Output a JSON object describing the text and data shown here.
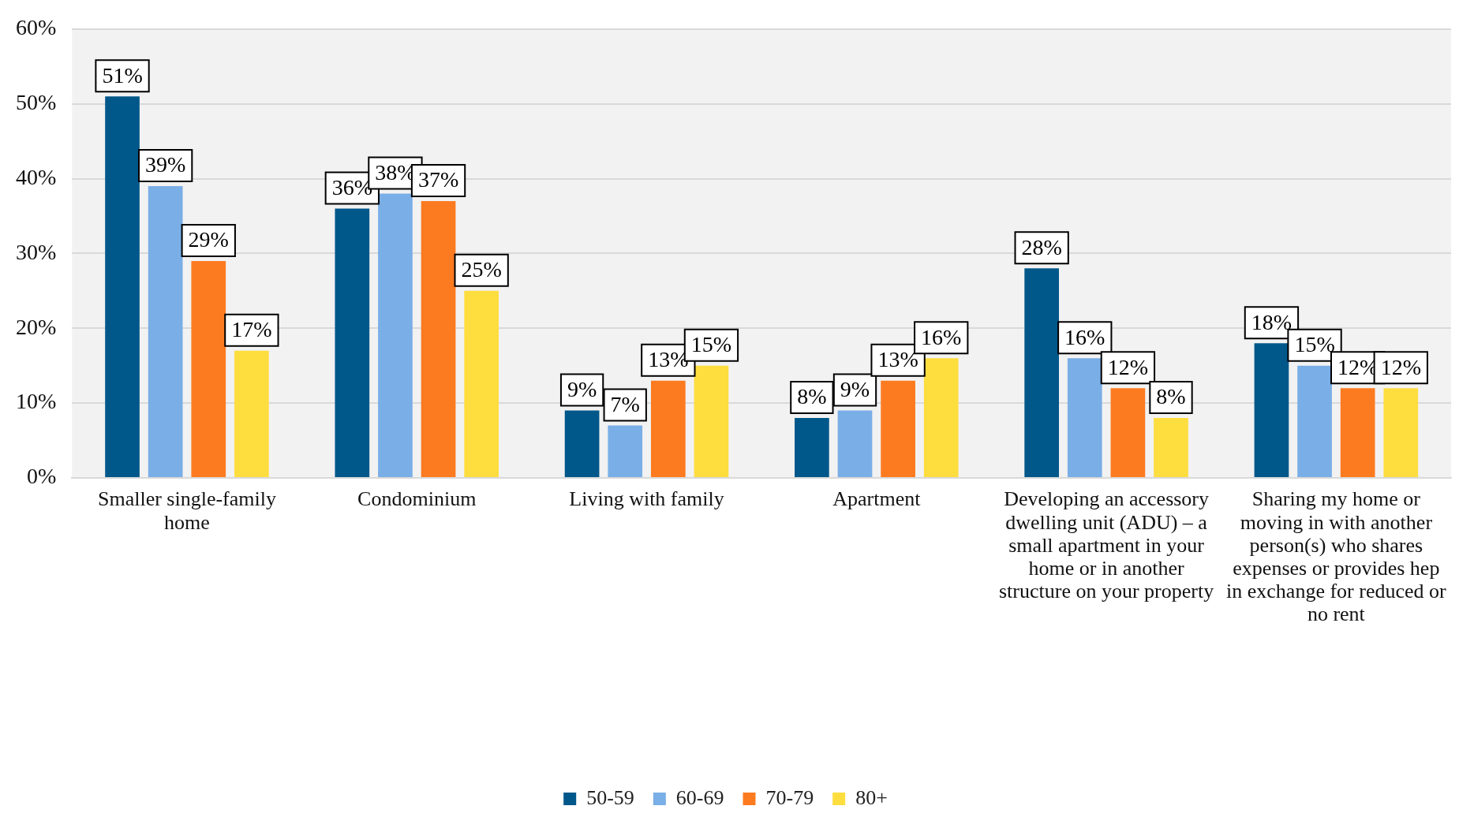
{
  "chart_data": {
    "type": "bar",
    "categories": [
      "Smaller single-family home",
      "Condominium",
      "Living with family",
      "Apartment",
      "Developing an accessory dwelling unit (ADU) – a small apartment in your home or in another structure on your property",
      "Sharing my home or moving in with another person(s) who shares expenses or provides hep in exchange for reduced or no rent"
    ],
    "series": [
      {
        "name": "50-59",
        "color": "#00578a",
        "values": [
          51,
          36,
          9,
          8,
          28,
          18
        ],
        "value_labels": [
          "51%",
          "36%",
          "9%",
          "8%",
          "28%",
          "18%"
        ]
      },
      {
        "name": "60-69",
        "color": "#7aaee6",
        "values": [
          39,
          38,
          7,
          9,
          16,
          15
        ],
        "value_labels": [
          "39%",
          "38%",
          "7%",
          "9%",
          "16%",
          "15%"
        ]
      },
      {
        "name": "70-79",
        "color": "#fd7b20",
        "values": [
          29,
          37,
          13,
          13,
          12,
          12
        ],
        "value_labels": [
          "29%",
          "37%",
          "13%",
          "13%",
          "12%",
          "12%"
        ]
      },
      {
        "name": "80+",
        "color": "#fedd3f",
        "values": [
          17,
          25,
          15,
          16,
          8,
          12
        ],
        "value_labels": [
          "17%",
          "25%",
          "15%",
          "16%",
          "8%",
          "12%"
        ]
      }
    ],
    "ylim": [
      0,
      60
    ],
    "yticks": [
      {
        "value": 0,
        "label": "0%"
      },
      {
        "value": 10,
        "label": "10%"
      },
      {
        "value": 20,
        "label": "20%"
      },
      {
        "value": 30,
        "label": "30%"
      },
      {
        "value": 40,
        "label": "40%"
      },
      {
        "value": 50,
        "label": "50%"
      },
      {
        "value": 60,
        "label": "60%"
      }
    ],
    "grid": "y",
    "legend": "bottom"
  }
}
